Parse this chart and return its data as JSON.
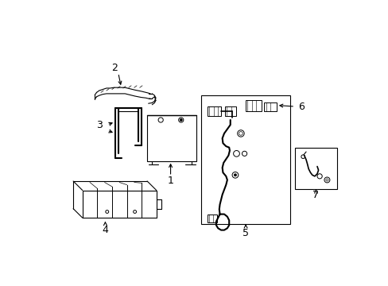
{
  "background_color": "#ffffff",
  "line_color": "#000000",
  "fig_width": 4.89,
  "fig_height": 3.6,
  "dpi": 100,
  "font_size": 8
}
